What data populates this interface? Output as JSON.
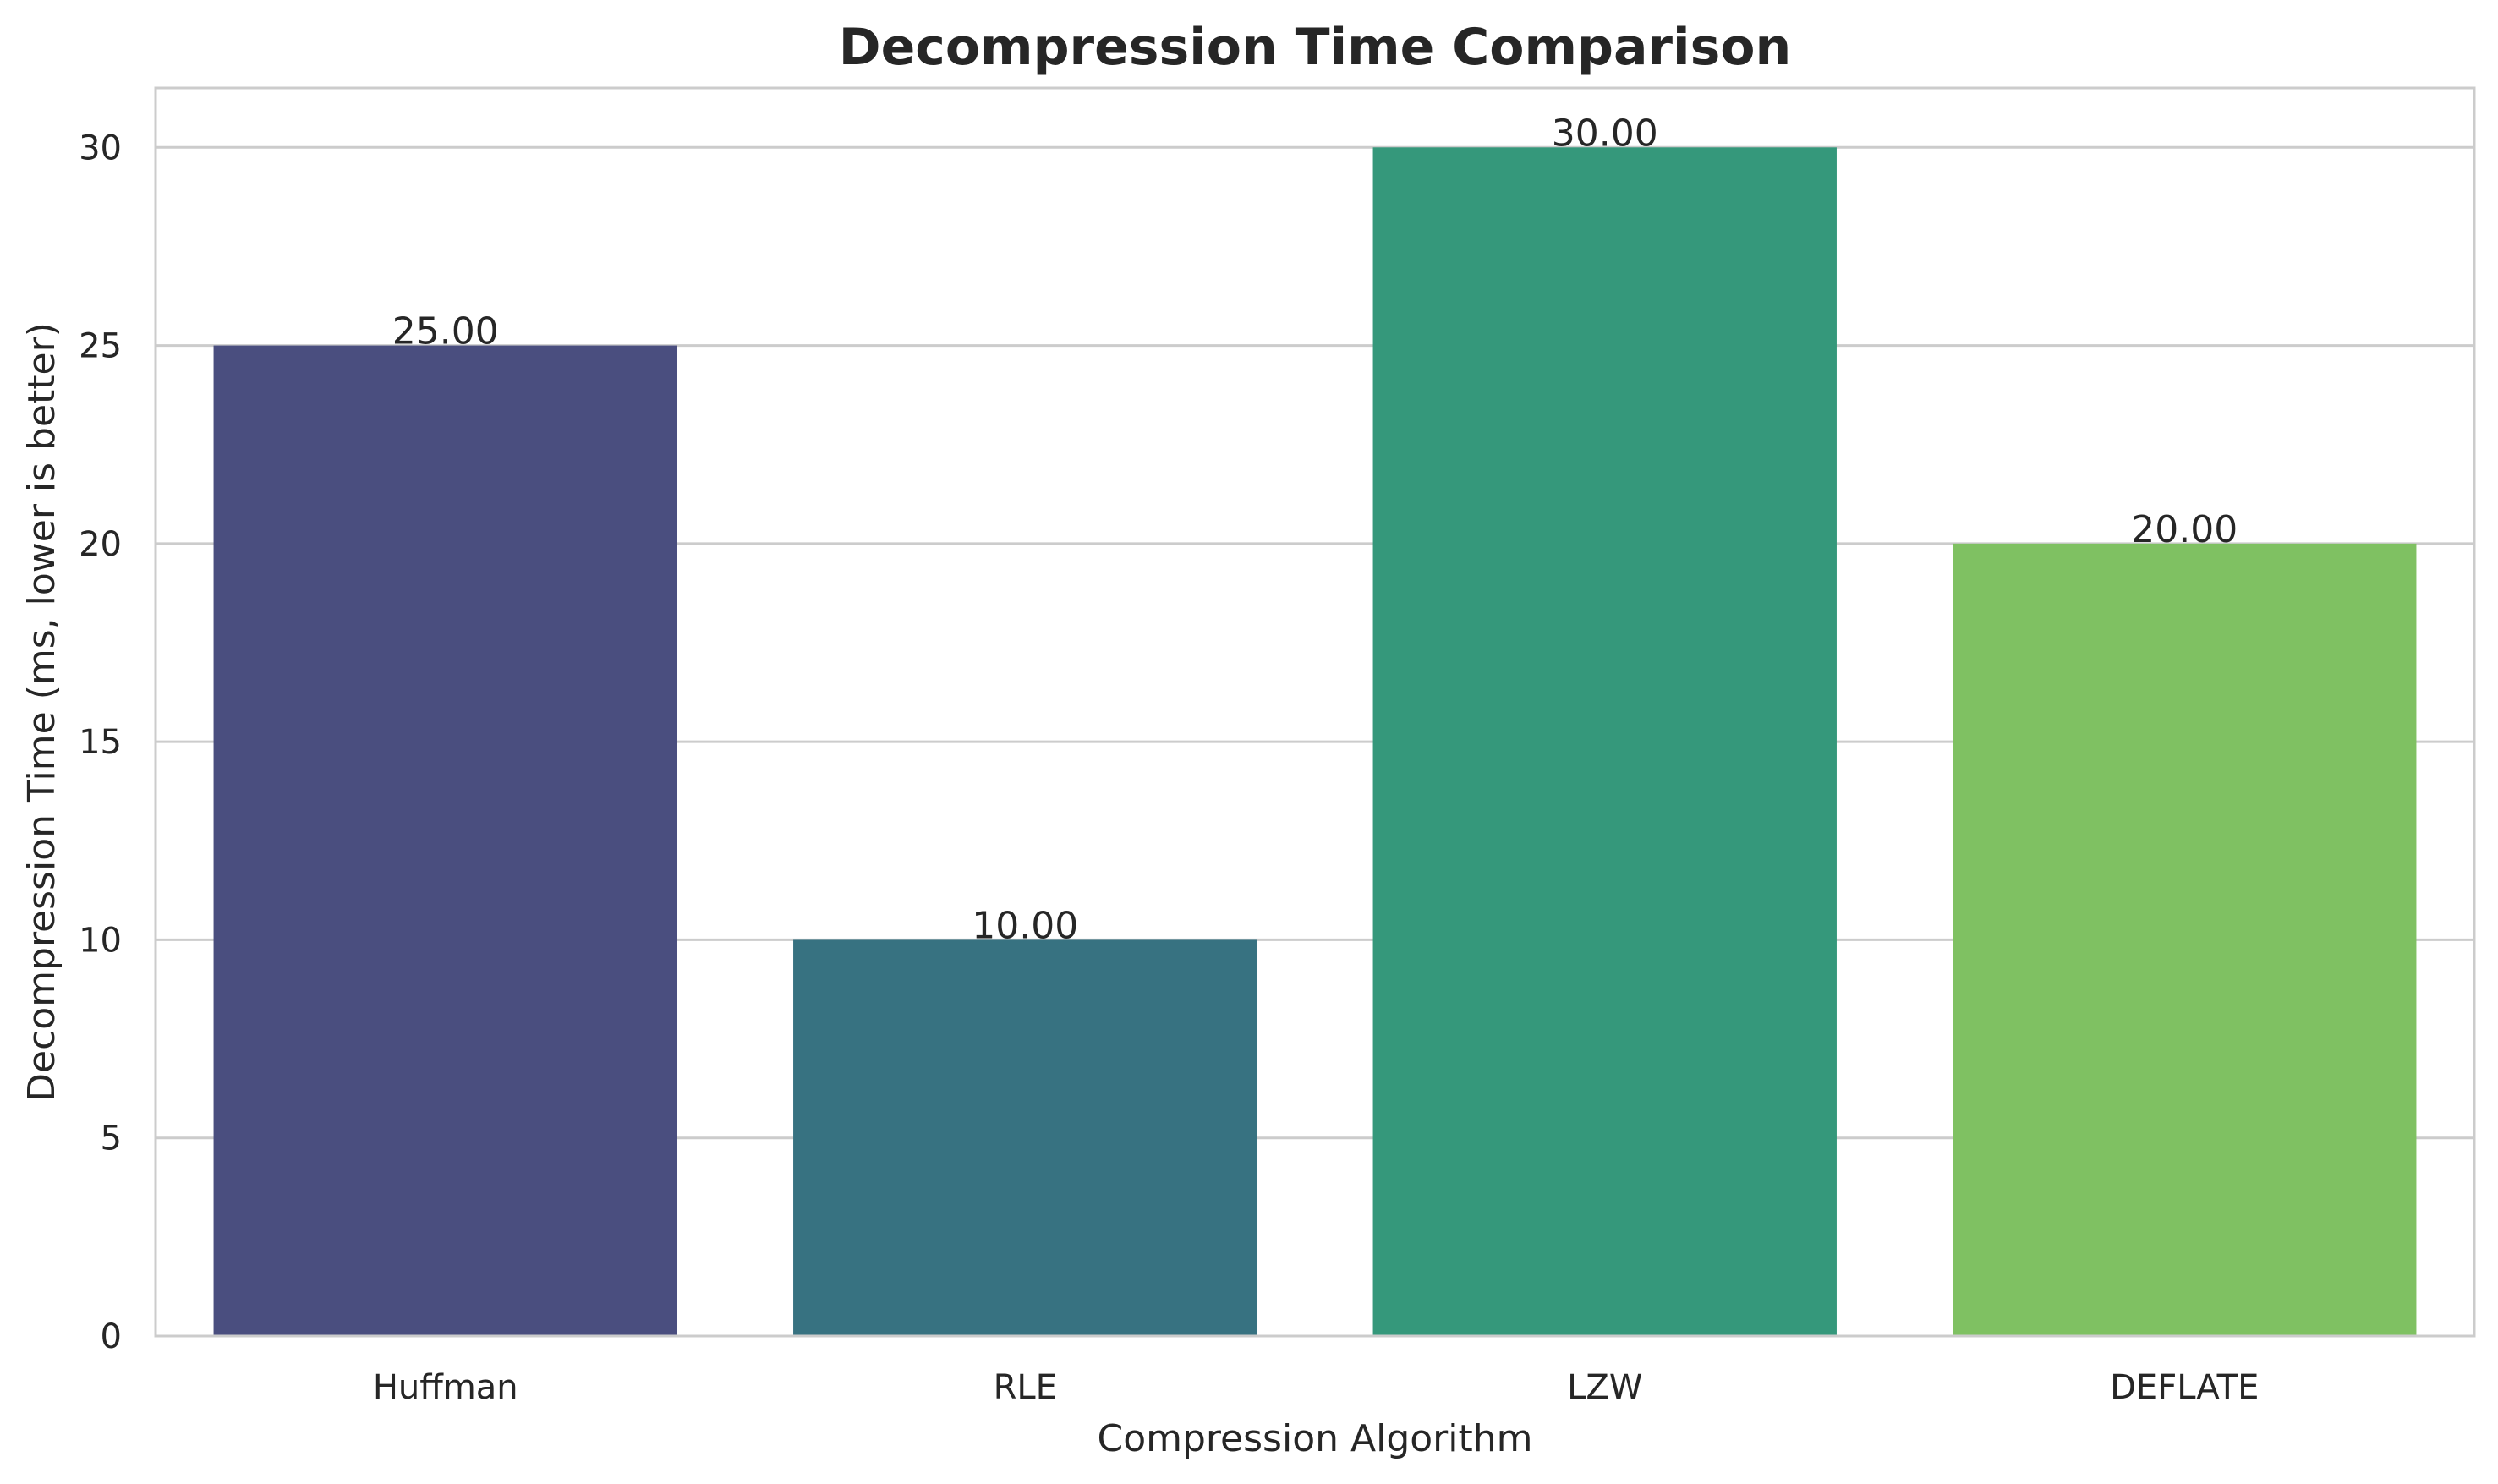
{
  "chart_data": {
    "type": "bar",
    "title": "Decompression Time Comparison",
    "xlabel": "Compression Algorithm",
    "ylabel": "Decompression Time (ms, lower is better)",
    "categories": [
      "Huffman",
      "RLE",
      "LZW",
      "DEFLATE"
    ],
    "values": [
      25,
      10,
      30,
      20
    ],
    "value_labels": [
      "25.00",
      "10.00",
      "30.00",
      "20.00"
    ],
    "colors": [
      "#4a4e7f",
      "#377281",
      "#35987b",
      "#7fc162"
    ],
    "ylim": [
      0,
      31.5
    ],
    "yticks": [
      0,
      5,
      10,
      15,
      20,
      25,
      30
    ],
    "grid": "horizontal",
    "legend": "none"
  }
}
